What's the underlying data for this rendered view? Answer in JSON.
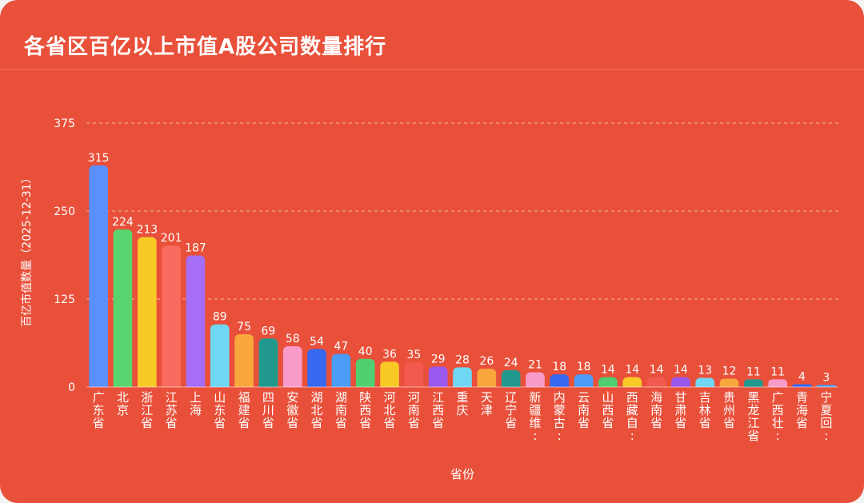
{
  "chart_data": {
    "type": "bar",
    "title": "各省区百亿以上市值A股公司数量排行",
    "xlabel": "省份",
    "ylabel": "百亿市值数量（2025-12-31）",
    "ylim": [
      0,
      375
    ],
    "yticks": [
      "0",
      "125",
      "250",
      "375"
    ],
    "grid": true,
    "categories": [
      "广东省",
      "北京",
      "浙江省",
      "江苏省",
      "上海",
      "山东省",
      "福建省",
      "四川省",
      "安徽省",
      "湖北省",
      "湖南省",
      "陕西省",
      "河北省",
      "河南省",
      "江西省",
      "重庆",
      "天津",
      "辽宁省",
      "新疆维:",
      "内蒙古:",
      "云南省",
      "山西省",
      "西藏自:",
      "海南省",
      "甘肃省",
      "吉林省",
      "贵州省",
      "黑龙江省",
      "广西壮:",
      "青海省",
      "宁夏回:"
    ],
    "values": [
      315,
      224,
      213,
      201,
      187,
      89,
      75,
      69,
      58,
      54,
      47,
      40,
      36,
      35,
      29,
      28,
      26,
      24,
      21,
      18,
      18,
      14,
      14,
      14,
      14,
      13,
      12,
      11,
      11,
      4,
      3
    ],
    "colors": [
      "#5b8ff9",
      "#5ad46e",
      "#f9c926",
      "#f86b5e",
      "#a66ef7",
      "#6fd7f4",
      "#f9a63d",
      "#21998e",
      "#f99bc9",
      "#3668f0",
      "#4a9cf6",
      "#4fcf70",
      "#f9c926",
      "#f25a50",
      "#9b58ee",
      "#6fd7f4",
      "#f9a63d",
      "#21998e",
      "#f99bc9",
      "#3668f0",
      "#4a9cf6",
      "#4fcf70",
      "#f9c926",
      "#f25a50",
      "#9b58ee",
      "#6fd7f4",
      "#f9a63d",
      "#21998e",
      "#f99bc9",
      "#3668f0",
      "#4a9cf6"
    ]
  }
}
